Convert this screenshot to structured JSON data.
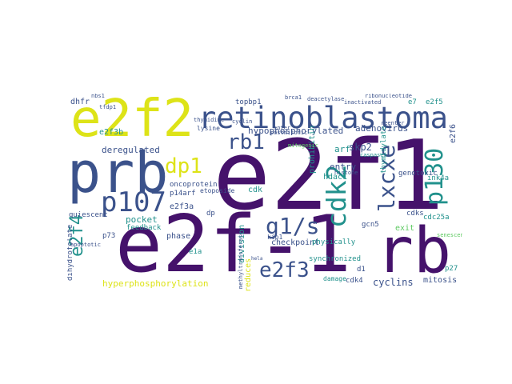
{
  "colors": {
    "dark": "#45126b",
    "blue": "#3b528b",
    "teal": "#21918c",
    "green": "#5ec962",
    "yellow": "#dde318"
  },
  "words": [
    {
      "t": "e2f1",
      "c": "dark"
    },
    {
      "t": "e2f-1",
      "c": "dark"
    },
    {
      "t": "prb",
      "c": "blue"
    },
    {
      "t": "e2f2",
      "c": "yellow"
    },
    {
      "t": "rb",
      "c": "dark"
    },
    {
      "t": "retinoblastoma",
      "c": "blue"
    },
    {
      "t": "cdk2",
      "c": "teal"
    },
    {
      "t": "p130",
      "c": "teal"
    },
    {
      "t": "lxcxe",
      "c": "blue"
    },
    {
      "t": "p107",
      "c": "blue"
    },
    {
      "t": "dp1",
      "c": "yellow"
    },
    {
      "t": "rb1",
      "c": "blue"
    },
    {
      "t": "g1/s",
      "c": "blue"
    },
    {
      "t": "e2f3",
      "c": "blue"
    },
    {
      "t": "e2f4",
      "c": "teal"
    },
    {
      "t": "hypophosphorylated",
      "c": "blue"
    },
    {
      "t": "adenovirus",
      "c": "blue"
    },
    {
      "t": "deregulated",
      "c": "blue"
    },
    {
      "t": "skp2",
      "c": "blue"
    },
    {
      "t": "arf",
      "c": "teal"
    },
    {
      "t": "hyperphosphorylation",
      "c": "yellow"
    },
    {
      "t": "cyclins",
      "c": "blue"
    },
    {
      "t": "mitosis",
      "c": "blue"
    },
    {
      "t": "checkpoint",
      "c": "blue"
    },
    {
      "t": "pocket",
      "c": "teal"
    },
    {
      "t": "e2f3a",
      "c": "blue"
    },
    {
      "t": "e2f3b",
      "c": "teal"
    },
    {
      "t": "topbp1",
      "c": "blue"
    },
    {
      "t": "e2f5",
      "c": "teal"
    },
    {
      "t": "e2f6",
      "c": "blue"
    },
    {
      "t": "e7",
      "c": "teal"
    },
    {
      "t": "dhfr",
      "c": "blue"
    },
    {
      "t": "entry",
      "c": "blue"
    },
    {
      "t": "hdac1",
      "c": "teal"
    },
    {
      "t": "gcn5",
      "c": "blue"
    },
    {
      "t": "cdk",
      "c": "teal"
    },
    {
      "t": "cdk4",
      "c": "blue"
    },
    {
      "t": "cdc25a",
      "c": "teal"
    },
    {
      "t": "ink4a",
      "c": "teal"
    },
    {
      "t": "thymidylate",
      "c": "teal"
    },
    {
      "t": "genotoxic",
      "c": "blue"
    },
    {
      "t": "exit",
      "c": "green"
    },
    {
      "t": "cdks",
      "c": "blue"
    },
    {
      "t": "division",
      "c": "teal"
    },
    {
      "t": "prohibitin",
      "c": "teal"
    },
    {
      "t": "p14arf",
      "c": "blue"
    },
    {
      "t": "oncoprotein",
      "c": "blue"
    },
    {
      "t": "phase",
      "c": "blue"
    },
    {
      "t": "e1a",
      "c": "teal"
    },
    {
      "t": "p73",
      "c": "blue"
    },
    {
      "t": "quiescent",
      "c": "blue"
    },
    {
      "t": "feedback",
      "c": "teal"
    },
    {
      "t": "dihydrofolate",
      "c": "blue"
    },
    {
      "t": "dp",
      "c": "blue"
    },
    {
      "t": "kip1",
      "c": "blue"
    },
    {
      "t": "d1",
      "c": "blue"
    },
    {
      "t": "p27",
      "c": "teal"
    },
    {
      "t": "lysine",
      "c": "blue"
    },
    {
      "t": "thymidine",
      "c": "blue"
    },
    {
      "t": "physically",
      "c": "teal"
    },
    {
      "t": "reduces",
      "c": "yellow"
    },
    {
      "t": "inactivated",
      "c": "blue"
    },
    {
      "t": "ribonucleotide",
      "c": "blue"
    },
    {
      "t": "deacetylase",
      "c": "blue"
    },
    {
      "t": "brca1",
      "c": "blue"
    },
    {
      "t": "synchronized",
      "c": "teal"
    },
    {
      "t": "damage",
      "c": "teal"
    },
    {
      "t": "methyltransferase",
      "c": "blue"
    },
    {
      "t": "etoposide",
      "c": "blue"
    },
    {
      "t": "nbs1",
      "c": "blue"
    },
    {
      "t": "tfdp1",
      "c": "blue"
    },
    {
      "t": "apoptotic",
      "c": "blue"
    },
    {
      "t": "reenter",
      "c": "blue"
    },
    {
      "t": "postmitotic",
      "c": "blue"
    },
    {
      "t": "enter",
      "c": "blue"
    },
    {
      "t": "mitogenic",
      "c": "green"
    },
    {
      "t": "histone",
      "c": "blue"
    },
    {
      "t": "caspases",
      "c": "teal"
    },
    {
      "t": "senescence",
      "c": "green"
    },
    {
      "t": "hela",
      "c": "blue"
    },
    {
      "t": "cyclin",
      "c": "blue"
    }
  ]
}
